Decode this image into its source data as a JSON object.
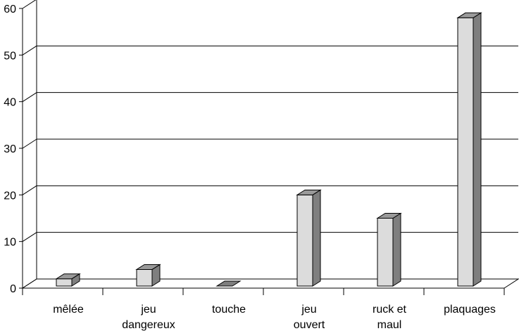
{
  "chart_data": {
    "type": "bar3d",
    "categories": [
      "mêlée",
      "jeu\ndangereux",
      "touche",
      "jeu\nouvert",
      "ruck et\nmaul",
      "plaquages"
    ],
    "values": [
      2,
      4,
      0,
      20,
      15,
      58
    ],
    "ylim": [
      0,
      60
    ],
    "yticks": [
      0,
      10,
      20,
      30,
      40,
      50,
      60
    ],
    "grid": true,
    "colors": {
      "front": "#dcdcdc",
      "top": "#9a9a9a",
      "side": "#7f7f7f"
    }
  }
}
